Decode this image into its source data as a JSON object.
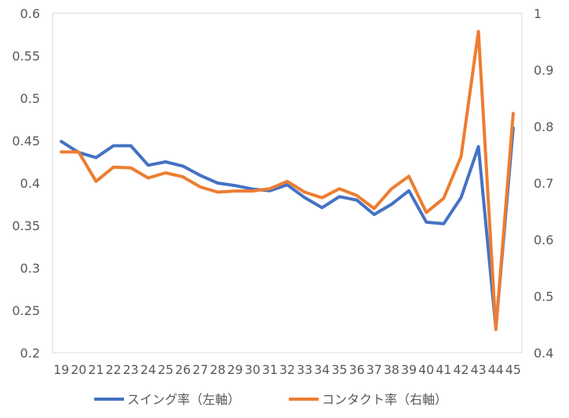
{
  "chart_data": {
    "type": "line",
    "categories": [
      "19",
      "20",
      "21",
      "22",
      "23",
      "24",
      "25",
      "26",
      "27",
      "28",
      "29",
      "30",
      "31",
      "32",
      "33",
      "34",
      "35",
      "36",
      "37",
      "38",
      "39",
      "40",
      "41",
      "42",
      "43",
      "44",
      "45"
    ],
    "series": [
      {
        "name": "スイング率（左軸）",
        "axis": "left",
        "color": "#4472C4",
        "values": [
          0.449,
          0.436,
          0.43,
          0.444,
          0.444,
          0.421,
          0.425,
          0.42,
          0.409,
          0.4,
          0.397,
          0.393,
          0.391,
          0.398,
          0.383,
          0.371,
          0.384,
          0.38,
          0.363,
          0.375,
          0.391,
          0.354,
          0.352,
          0.383,
          0.443,
          0.229,
          0.465
        ]
      },
      {
        "name": "コンタクト率（右軸）",
        "axis": "right",
        "color": "#ED7D31",
        "values": [
          0.755,
          0.755,
          0.703,
          0.728,
          0.727,
          0.709,
          0.718,
          0.711,
          0.693,
          0.684,
          0.686,
          0.686,
          0.69,
          0.703,
          0.684,
          0.674,
          0.69,
          0.678,
          0.655,
          0.69,
          0.712,
          0.648,
          0.673,
          0.747,
          0.968,
          0.441,
          0.823
        ]
      }
    ],
    "left_axis": {
      "ylim": [
        0.2,
        0.6
      ],
      "ticks": [
        "0.2",
        "0.25",
        "0.3",
        "0.35",
        "0.4",
        "0.45",
        "0.5",
        "0.55",
        "0.6"
      ]
    },
    "right_axis": {
      "ylim": [
        0.4,
        1.0
      ],
      "ticks": [
        "0.4",
        "0.5",
        "0.6",
        "0.7",
        "0.8",
        "0.9",
        "1"
      ]
    },
    "grid": false,
    "legend_position": "bottom"
  }
}
